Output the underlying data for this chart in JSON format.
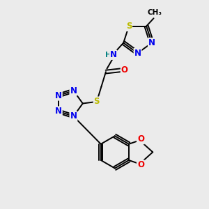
{
  "bg_color": "#ebebeb",
  "atom_colors": {
    "C": "#000000",
    "N": "#0000ee",
    "O": "#ee0000",
    "S": "#bbbb00",
    "H": "#008080"
  }
}
